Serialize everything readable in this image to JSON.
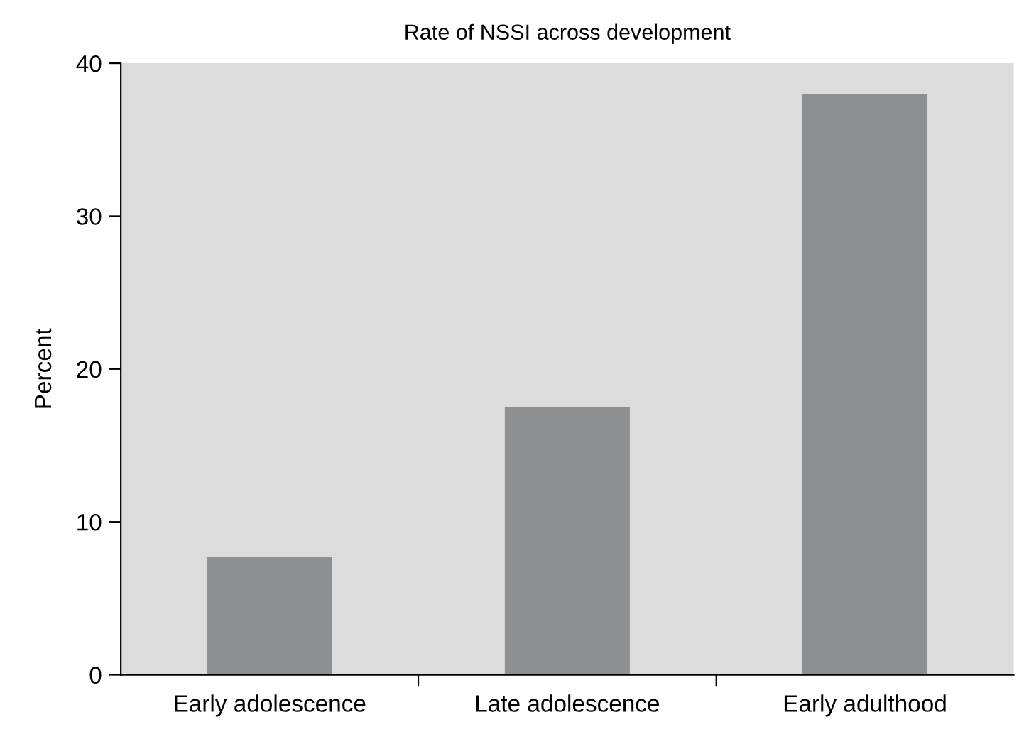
{
  "chart_data": {
    "type": "bar",
    "title": "Rate of NSSI across development",
    "ylabel": "Percent",
    "categories": [
      "Early adolescence",
      "Late adolescence",
      "Early adulthood"
    ],
    "values": [
      7.7,
      17.5,
      38
    ],
    "color": "#8e8f91",
    "ylim": [
      0,
      40
    ],
    "yticks": [
      0,
      10,
      20,
      30,
      40
    ],
    "grid": false
  }
}
